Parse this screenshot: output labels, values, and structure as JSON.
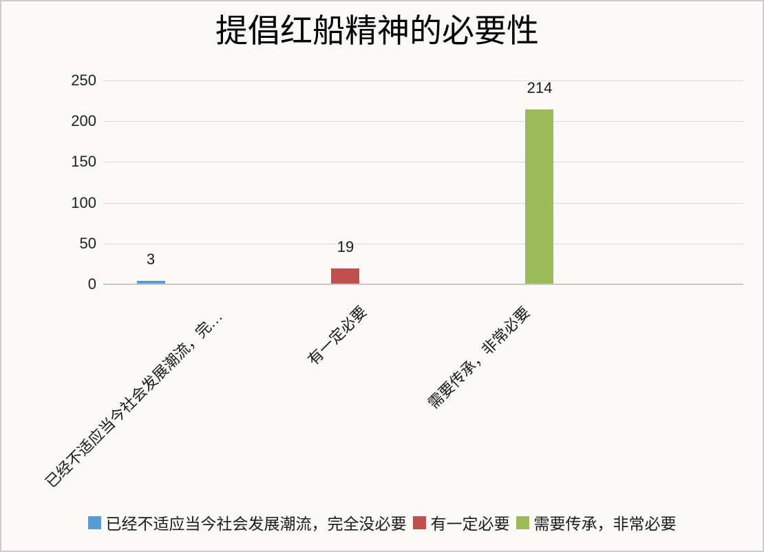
{
  "page": {
    "background": "#FBFAF7",
    "border_color": "#CBCBD0"
  },
  "chart_data": {
    "type": "bar",
    "title": "提倡红船精神的必要性",
    "categories": [
      "已经不适应当今社会发展潮流，完全没必要",
      "有一定必要",
      "需要传承，非常必要"
    ],
    "tick_labels": [
      "已经不适应当今社会发展潮流，完…",
      "有一定必要",
      "需要传承，非常必要"
    ],
    "values": [
      3,
      19,
      214
    ],
    "data_labels": [
      "3",
      "19",
      "214"
    ],
    "bar_colors": [
      "#5B9BD5",
      "#C0504D",
      "#9BBB59"
    ],
    "xlabel": "",
    "ylabel": "",
    "ylim": [
      0,
      250
    ],
    "yticks": [
      0,
      50,
      100,
      150,
      200,
      250
    ],
    "grid": "horizontal",
    "gridline_color": "#D9D9D9",
    "legend_position": "bottom",
    "legend": [
      {
        "label": "已经不适应当今社会发展潮流，完全没必要",
        "color": "#5B9BD5"
      },
      {
        "label": "有一定必要",
        "color": "#C0504D"
      },
      {
        "label": "需要传承，非常必要",
        "color": "#9BBB59"
      }
    ]
  }
}
